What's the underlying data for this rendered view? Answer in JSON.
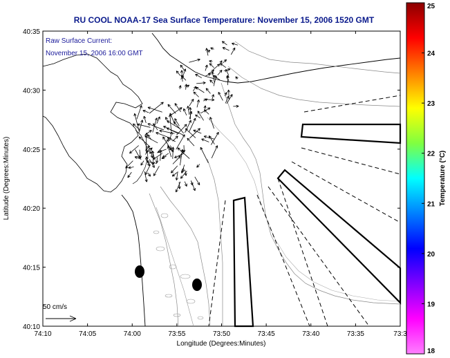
{
  "chart_data": {
    "type": "map",
    "title": "RU COOL  NOAA-17  Sea Surface Temperature:  November 15, 2006 1520 GMT",
    "overlay_label_line1": "Raw Surface Current:",
    "overlay_label_line2": "November 15, 2006 16:00 GMT",
    "xlabel": "Longitude (Degrees:Minutes)",
    "ylabel": "Latitude (Degrees:Minutes)",
    "x_ticks": [
      "74:10",
      "74:05",
      "74:00",
      "73:55",
      "73:50",
      "73:45",
      "73:40",
      "73:35",
      "73:3"
    ],
    "y_ticks": [
      "40:35",
      "40:30",
      "40:25",
      "40:20",
      "40:15",
      "40:10"
    ],
    "x_range_minutes_west": [
      70,
      30
    ],
    "y_range_minutes": [
      10,
      35
    ],
    "colorbar": {
      "label": "Temperature (°C)",
      "ticks": [
        "25",
        "24",
        "23",
        "22",
        "21",
        "20",
        "19",
        "18"
      ],
      "range": [
        18,
        25
      ],
      "colors": [
        "#8b0000",
        "#ff0000",
        "#ff8000",
        "#ffff00",
        "#80ff40",
        "#00ffff",
        "#0080ff",
        "#0000ff",
        "#8000ff",
        "#ff00ff",
        "#ff80ff"
      ]
    },
    "scale_vector_label": "50 cm/s",
    "markers": [
      {
        "lon_min_w": 59.0,
        "lat_min": 14.6
      },
      {
        "lon_min_w": 52.4,
        "lat_min": 13.5
      }
    ],
    "grid": false,
    "legend": "top-left"
  }
}
